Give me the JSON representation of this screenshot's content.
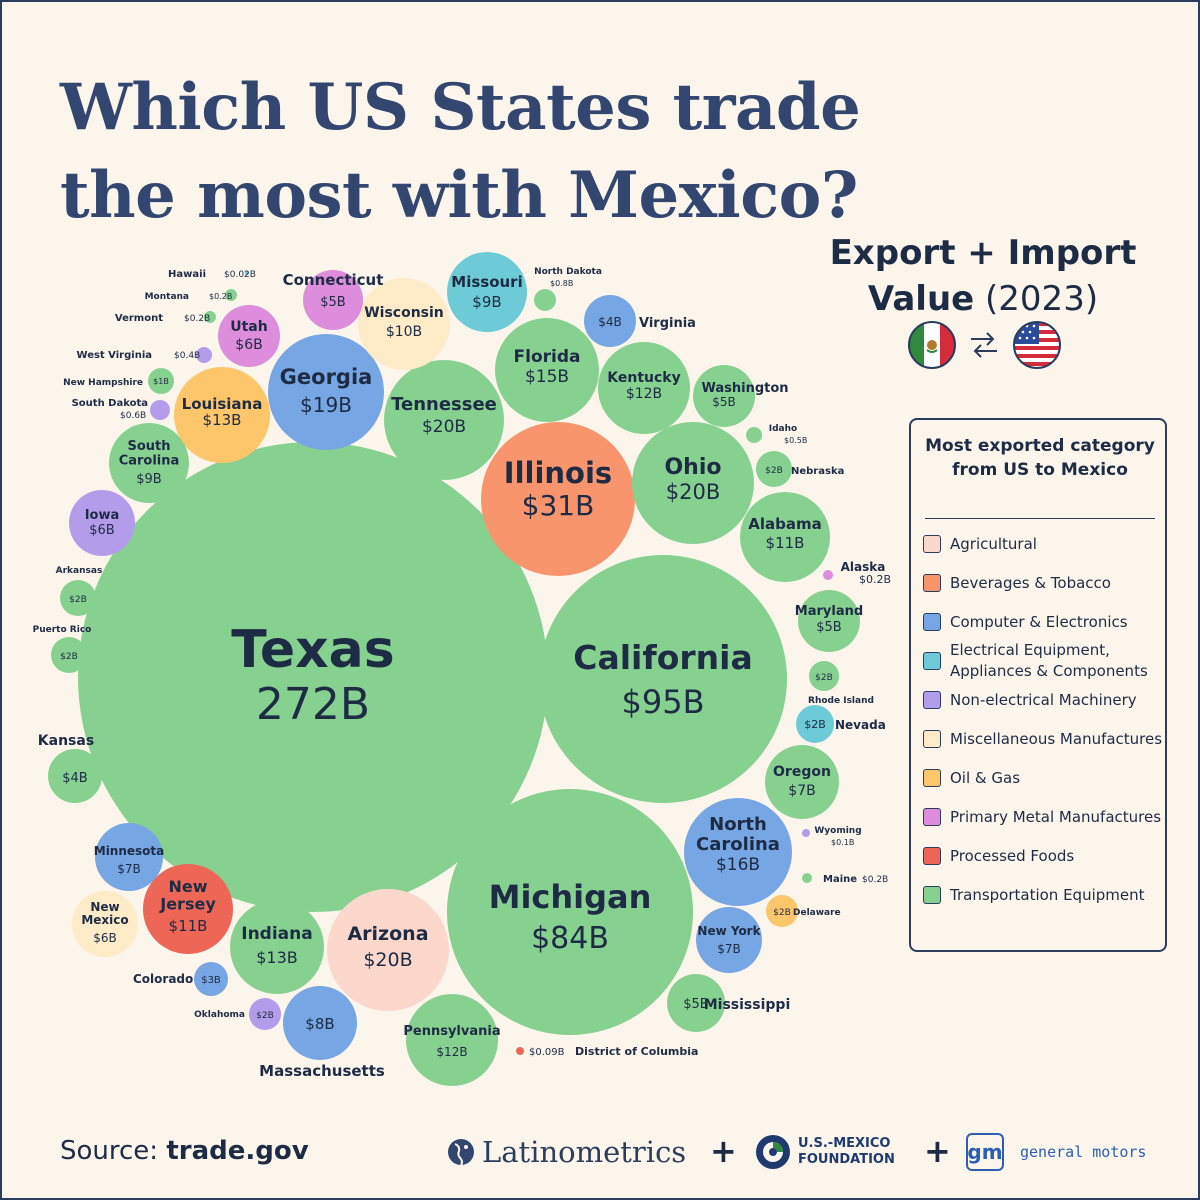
{
  "title": "Which US States trade the most with Mexico?",
  "subtitle": {
    "bold": "Export + Import Value",
    "year": "(2023)"
  },
  "flags": [
    "mexico-flag",
    "arrows-exchange-icon",
    "us-flag"
  ],
  "legend": {
    "title": "Most exported category from US to Mexico",
    "items": [
      {
        "label": "Agricultural",
        "color": "#fbd8cb"
      },
      {
        "label": "Beverages & Tobacco",
        "color": "#f9956d"
      },
      {
        "label": "Computer & Electronics",
        "color": "#76a6e3"
      },
      {
        "label": "Electrical Equipment, Appliances & Components",
        "color": "#6ccbd6"
      },
      {
        "label": "Non-electrical Machinery",
        "color": "#b39deb"
      },
      {
        "label": "Miscellaneous Manufactures",
        "color": "#feebc8"
      },
      {
        "label": "Oil & Gas",
        "color": "#fdc66b"
      },
      {
        "label": "Primary Metal Manufactures",
        "color": "#dd8ddb"
      },
      {
        "label": "Processed Foods",
        "color": "#ed6656"
      },
      {
        "label": "Transportation Equipment",
        "color": "#87d190"
      }
    ]
  },
  "source": {
    "label": "Source:",
    "value": "trade.gov"
  },
  "logos": {
    "latinometrics": "Latinometrics",
    "usmf": "U.S.-MEXICO\nFOUNDATION",
    "gm_mark": "gm",
    "gm": "general motors",
    "plus": "+"
  },
  "chart_data": {
    "type": "bubble",
    "unit": "USD billions",
    "title": "Which US States trade the most with Mexico?",
    "size_measure": "Export + Import Value (2023)",
    "color_measure": "Most exported category from US to Mexico",
    "states": [
      {
        "name": "Texas",
        "label": "272B",
        "value": 272,
        "category": "Transportation Equipment"
      },
      {
        "name": "California",
        "label": "$95B",
        "value": 95,
        "category": "Transportation Equipment"
      },
      {
        "name": "Michigan",
        "label": "$84B",
        "value": 84,
        "category": "Transportation Equipment"
      },
      {
        "name": "Illinois",
        "label": "$31B",
        "value": 31,
        "category": "Beverages & Tobacco"
      },
      {
        "name": "Tennessee",
        "label": "$20B",
        "value": 20,
        "category": "Transportation Equipment"
      },
      {
        "name": "Ohio",
        "label": "$20B",
        "value": 20,
        "category": "Transportation Equipment"
      },
      {
        "name": "Arizona",
        "label": "$20B",
        "value": 20,
        "category": "Agricultural"
      },
      {
        "name": "Georgia",
        "label": "$19B",
        "value": 19,
        "category": "Computer & Electronics"
      },
      {
        "name": "North Carolina",
        "label": "$16B",
        "value": 16,
        "category": "Computer & Electronics"
      },
      {
        "name": "Florida",
        "label": "$15B",
        "value": 15,
        "category": "Transportation Equipment"
      },
      {
        "name": "Louisiana",
        "label": "$13B",
        "value": 13,
        "category": "Oil & Gas"
      },
      {
        "name": "Indiana",
        "label": "$13B",
        "value": 13,
        "category": "Transportation Equipment"
      },
      {
        "name": "Kentucky",
        "label": "$12B",
        "value": 12,
        "category": "Transportation Equipment"
      },
      {
        "name": "Pennsylvania",
        "label": "$12B",
        "value": 12,
        "category": "Transportation Equipment"
      },
      {
        "name": "Alabama",
        "label": "$11B",
        "value": 11,
        "category": "Transportation Equipment"
      },
      {
        "name": "New Jersey",
        "label": "$11B",
        "value": 11,
        "category": "Processed Foods"
      },
      {
        "name": "Wisconsin",
        "label": "$10B",
        "value": 10,
        "category": "Miscellaneous Manufactures"
      },
      {
        "name": "Missouri",
        "label": "$9B",
        "value": 9,
        "category": "Electrical Equipment, Appliances & Components"
      },
      {
        "name": "South Carolina",
        "label": "$9B",
        "value": 9,
        "category": "Transportation Equipment"
      },
      {
        "name": "Massachusetts",
        "label": "$8B",
        "value": 8,
        "category": "Computer & Electronics"
      },
      {
        "name": "Minnesota",
        "label": "$7B",
        "value": 7,
        "category": "Computer & Electronics"
      },
      {
        "name": "Oregon",
        "label": "$7B",
        "value": 7,
        "category": "Transportation Equipment"
      },
      {
        "name": "New York",
        "label": "$7B",
        "value": 7,
        "category": "Computer & Electronics"
      },
      {
        "name": "Utah",
        "label": "$6B",
        "value": 6,
        "category": "Primary Metal Manufactures"
      },
      {
        "name": "Iowa",
        "label": "$6B",
        "value": 6,
        "category": "Non-electrical Machinery"
      },
      {
        "name": "New Mexico",
        "label": "$6B",
        "value": 6,
        "category": "Miscellaneous Manufactures"
      },
      {
        "name": "Connecticut",
        "label": "$5B",
        "value": 5,
        "category": "Primary Metal Manufactures"
      },
      {
        "name": "Washington",
        "label": "$5B",
        "value": 5,
        "category": "Transportation Equipment"
      },
      {
        "name": "Maryland",
        "label": "$5B",
        "value": 5,
        "category": "Transportation Equipment"
      },
      {
        "name": "Mississippi",
        "label": "$5B",
        "value": 5,
        "category": "Transportation Equipment"
      },
      {
        "name": "Virginia",
        "label": "$4B",
        "value": 4,
        "category": "Computer & Electronics"
      },
      {
        "name": "Kansas",
        "label": "$4B",
        "value": 4,
        "category": "Transportation Equipment"
      },
      {
        "name": "Colorado",
        "label": "$3B",
        "value": 3,
        "category": "Computer & Electronics"
      },
      {
        "name": "Arkansas",
        "label": "$2B",
        "value": 2,
        "category": "Transportation Equipment"
      },
      {
        "name": "Puerto Rico",
        "label": "$2B",
        "value": 2,
        "category": "Transportation Equipment"
      },
      {
        "name": "Nebraska",
        "label": "$2B",
        "value": 2,
        "category": "Transportation Equipment"
      },
      {
        "name": "Rhode Island",
        "label": "$2B",
        "value": 2,
        "category": "Transportation Equipment"
      },
      {
        "name": "Nevada",
        "label": "$2B",
        "value": 2,
        "category": "Electrical Equipment, Appliances & Components"
      },
      {
        "name": "Oklahoma",
        "label": "$2B",
        "value": 2,
        "category": "Non-electrical Machinery"
      },
      {
        "name": "Delaware",
        "label": "$2B",
        "value": 2,
        "category": "Oil & Gas"
      },
      {
        "name": "New Hampshire",
        "label": "$1B",
        "value": 1,
        "category": "Transportation Equipment"
      },
      {
        "name": "North Dakota",
        "label": "$0.8B",
        "value": 0.8,
        "category": "Transportation Equipment"
      },
      {
        "name": "South Dakota",
        "label": "$0.6B",
        "value": 0.6,
        "category": "Non-electrical Machinery"
      },
      {
        "name": "Idaho",
        "label": "$0.5B",
        "value": 0.5,
        "category": "Transportation Equipment"
      },
      {
        "name": "West Virginia",
        "label": "$0.4B",
        "value": 0.4,
        "category": "Non-electrical Machinery"
      },
      {
        "name": "Montana",
        "label": "$0.2B",
        "value": 0.2,
        "category": "Transportation Equipment"
      },
      {
        "name": "Vermont",
        "label": "$0.2B",
        "value": 0.2,
        "category": "Transportation Equipment"
      },
      {
        "name": "Alaska",
        "label": "$0.2B",
        "value": 0.2,
        "category": "Primary Metal Manufactures"
      },
      {
        "name": "Maine",
        "label": "$0.2B",
        "value": 0.2,
        "category": "Transportation Equipment"
      },
      {
        "name": "Wyoming",
        "label": "$0.1B",
        "value": 0.1,
        "category": "Non-electrical Machinery"
      },
      {
        "name": "District of Columbia",
        "label": "$0.09B",
        "value": 0.09,
        "category": "Processed Foods"
      },
      {
        "name": "Hawaii",
        "label": "$0.02B",
        "value": 0.02,
        "category": "Electrical Equipment, Appliances & Components"
      }
    ]
  }
}
